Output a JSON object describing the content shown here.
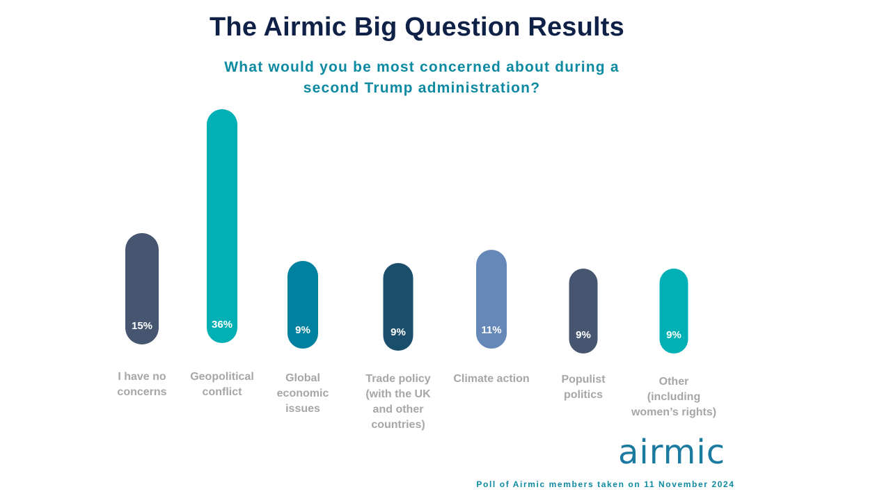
{
  "title": "The Airmic Big Question Results",
  "subtitle": "What would you be most concerned about during a second Trump administration?",
  "logo_text": "airmic",
  "footnote": "Poll of Airmic members taken on 11 November 2024",
  "chart_data": {
    "type": "bar",
    "categories": [
      "I have no concerns",
      "Geopolitical conflict",
      "Global economic issues",
      "Trade policy (with the UK and other countries)",
      "Climate action",
      "Populist politics",
      "Other (including women’s rights)"
    ],
    "category_lines": [
      [
        "I have no",
        "concerns"
      ],
      [
        "Geopolitical",
        "conflict"
      ],
      [
        "Global",
        "economic",
        "issues"
      ],
      [
        "Trade policy",
        "(with the UK",
        "and other",
        "countries)"
      ],
      [
        "Climate action"
      ],
      [
        "Populist",
        "politics"
      ],
      [
        "Other",
        "(including",
        "women’s rights)"
      ]
    ],
    "values": [
      15,
      36,
      9,
      9,
      11,
      9,
      9
    ],
    "data_labels": [
      "15%",
      "36%",
      "9%",
      "9%",
      "11%",
      "9%",
      "9%"
    ],
    "colors": [
      "#475670",
      "#00b0b5",
      "#00819f",
      "#1b4e6a",
      "#6688b8",
      "#475670",
      "#00b0b5"
    ],
    "unit": "%",
    "grid": false,
    "legend": "none"
  }
}
